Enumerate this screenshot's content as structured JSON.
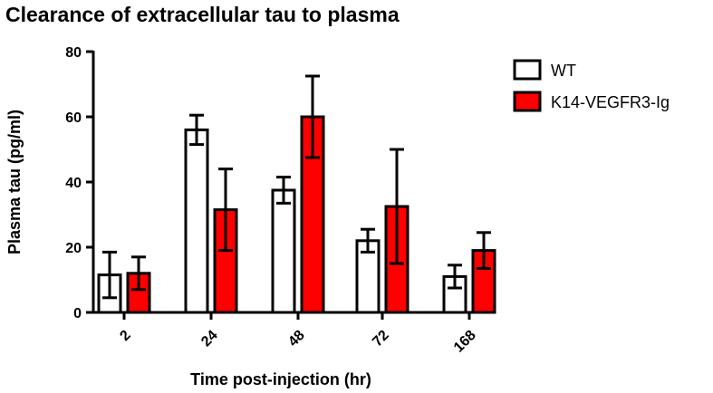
{
  "chart_data": {
    "type": "bar",
    "title": "Clearance of extracellular tau to plasma",
    "xlabel": "Time post-injection (hr)",
    "ylabel": "Plasma tau (pg/ml)",
    "ylim": [
      0,
      80
    ],
    "yticks": [
      "0",
      "20",
      "40",
      "60",
      "80"
    ],
    "categories": [
      "2",
      "24",
      "48",
      "72",
      "168"
    ],
    "series": [
      {
        "name": "WT",
        "color": "#ffffff",
        "values": [
          11.5,
          56,
          37.5,
          22,
          11
        ],
        "errors": [
          7,
          4.5,
          4,
          3.5,
          3.5
        ]
      },
      {
        "name": "K14-VEGFR3-Ig",
        "color": "#ff0000",
        "values": [
          12,
          31.5,
          60,
          32.5,
          19
        ],
        "errors": [
          5,
          12.5,
          12.5,
          17.5,
          5.5
        ]
      }
    ],
    "legend_position": "top-right",
    "grid": false
  }
}
